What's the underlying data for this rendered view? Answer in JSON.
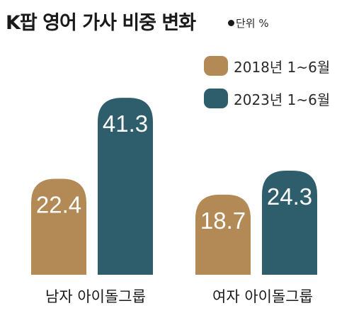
{
  "chart_data": {
    "type": "bar",
    "title": "K팝 영어 가사 비중 변화",
    "unit_label": "단위 %",
    "categories": [
      "남자 아이돌그룹",
      "여자 아이돌그룹"
    ],
    "series": [
      {
        "name": "2018년 1~6월",
        "color": "#b38a55",
        "values": [
          22.4,
          18.7
        ]
      },
      {
        "name": "2023년 1~6월",
        "color": "#2e5e6c",
        "values": [
          41.3,
          24.3
        ]
      }
    ],
    "ylim": [
      0,
      45
    ],
    "grid": false,
    "legend": "top-right",
    "data_label_color": "#ffffff"
  }
}
